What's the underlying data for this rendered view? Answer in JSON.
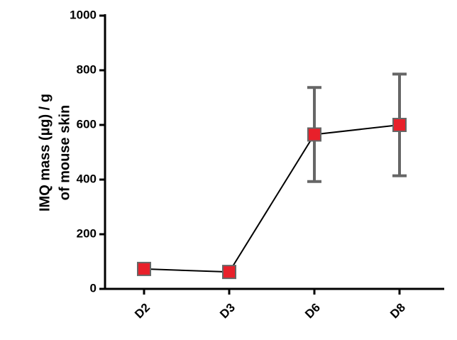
{
  "chart_data": {
    "type": "line",
    "ylabel": [
      "IMQ mass (µg) / g",
      "of mouse skin"
    ],
    "categories": [
      "D2",
      "D3",
      "D6",
      "D8"
    ],
    "series": [
      {
        "color": "#000000",
        "marker_color": "#e8202a",
        "error_color": "#666666",
        "values": [
          73,
          62,
          565,
          600
        ],
        "errors": [
          6,
          5,
          172,
          186
        ]
      }
    ],
    "ylim": [
      0,
      1000
    ],
    "yticks": [
      0,
      200,
      400,
      600,
      800,
      1000
    ]
  }
}
